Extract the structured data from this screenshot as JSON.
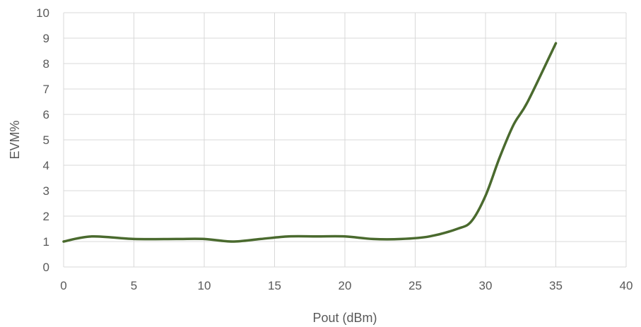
{
  "chart_data": {
    "type": "line",
    "title": "",
    "xlabel": "Pout (dBm)",
    "ylabel": "EVM%",
    "xlim": [
      0,
      40
    ],
    "ylim": [
      0,
      10
    ],
    "x_ticks": [
      0,
      5,
      10,
      15,
      20,
      25,
      30,
      35,
      40
    ],
    "y_ticks": [
      0,
      1,
      2,
      3,
      4,
      5,
      6,
      7,
      8,
      9,
      10
    ],
    "grid": true,
    "legend": "none",
    "series": [
      {
        "color": "#4a6a2e",
        "x": [
          0,
          2,
          5,
          8,
          10,
          12,
          14,
          16,
          18,
          20,
          22,
          24,
          26,
          28,
          29,
          30,
          31,
          32,
          33,
          35
        ],
        "y": [
          1.0,
          1.2,
          1.1,
          1.1,
          1.1,
          1.0,
          1.1,
          1.2,
          1.2,
          1.2,
          1.1,
          1.1,
          1.2,
          1.5,
          1.8,
          2.8,
          4.3,
          5.6,
          6.5,
          8.8
        ]
      }
    ]
  }
}
